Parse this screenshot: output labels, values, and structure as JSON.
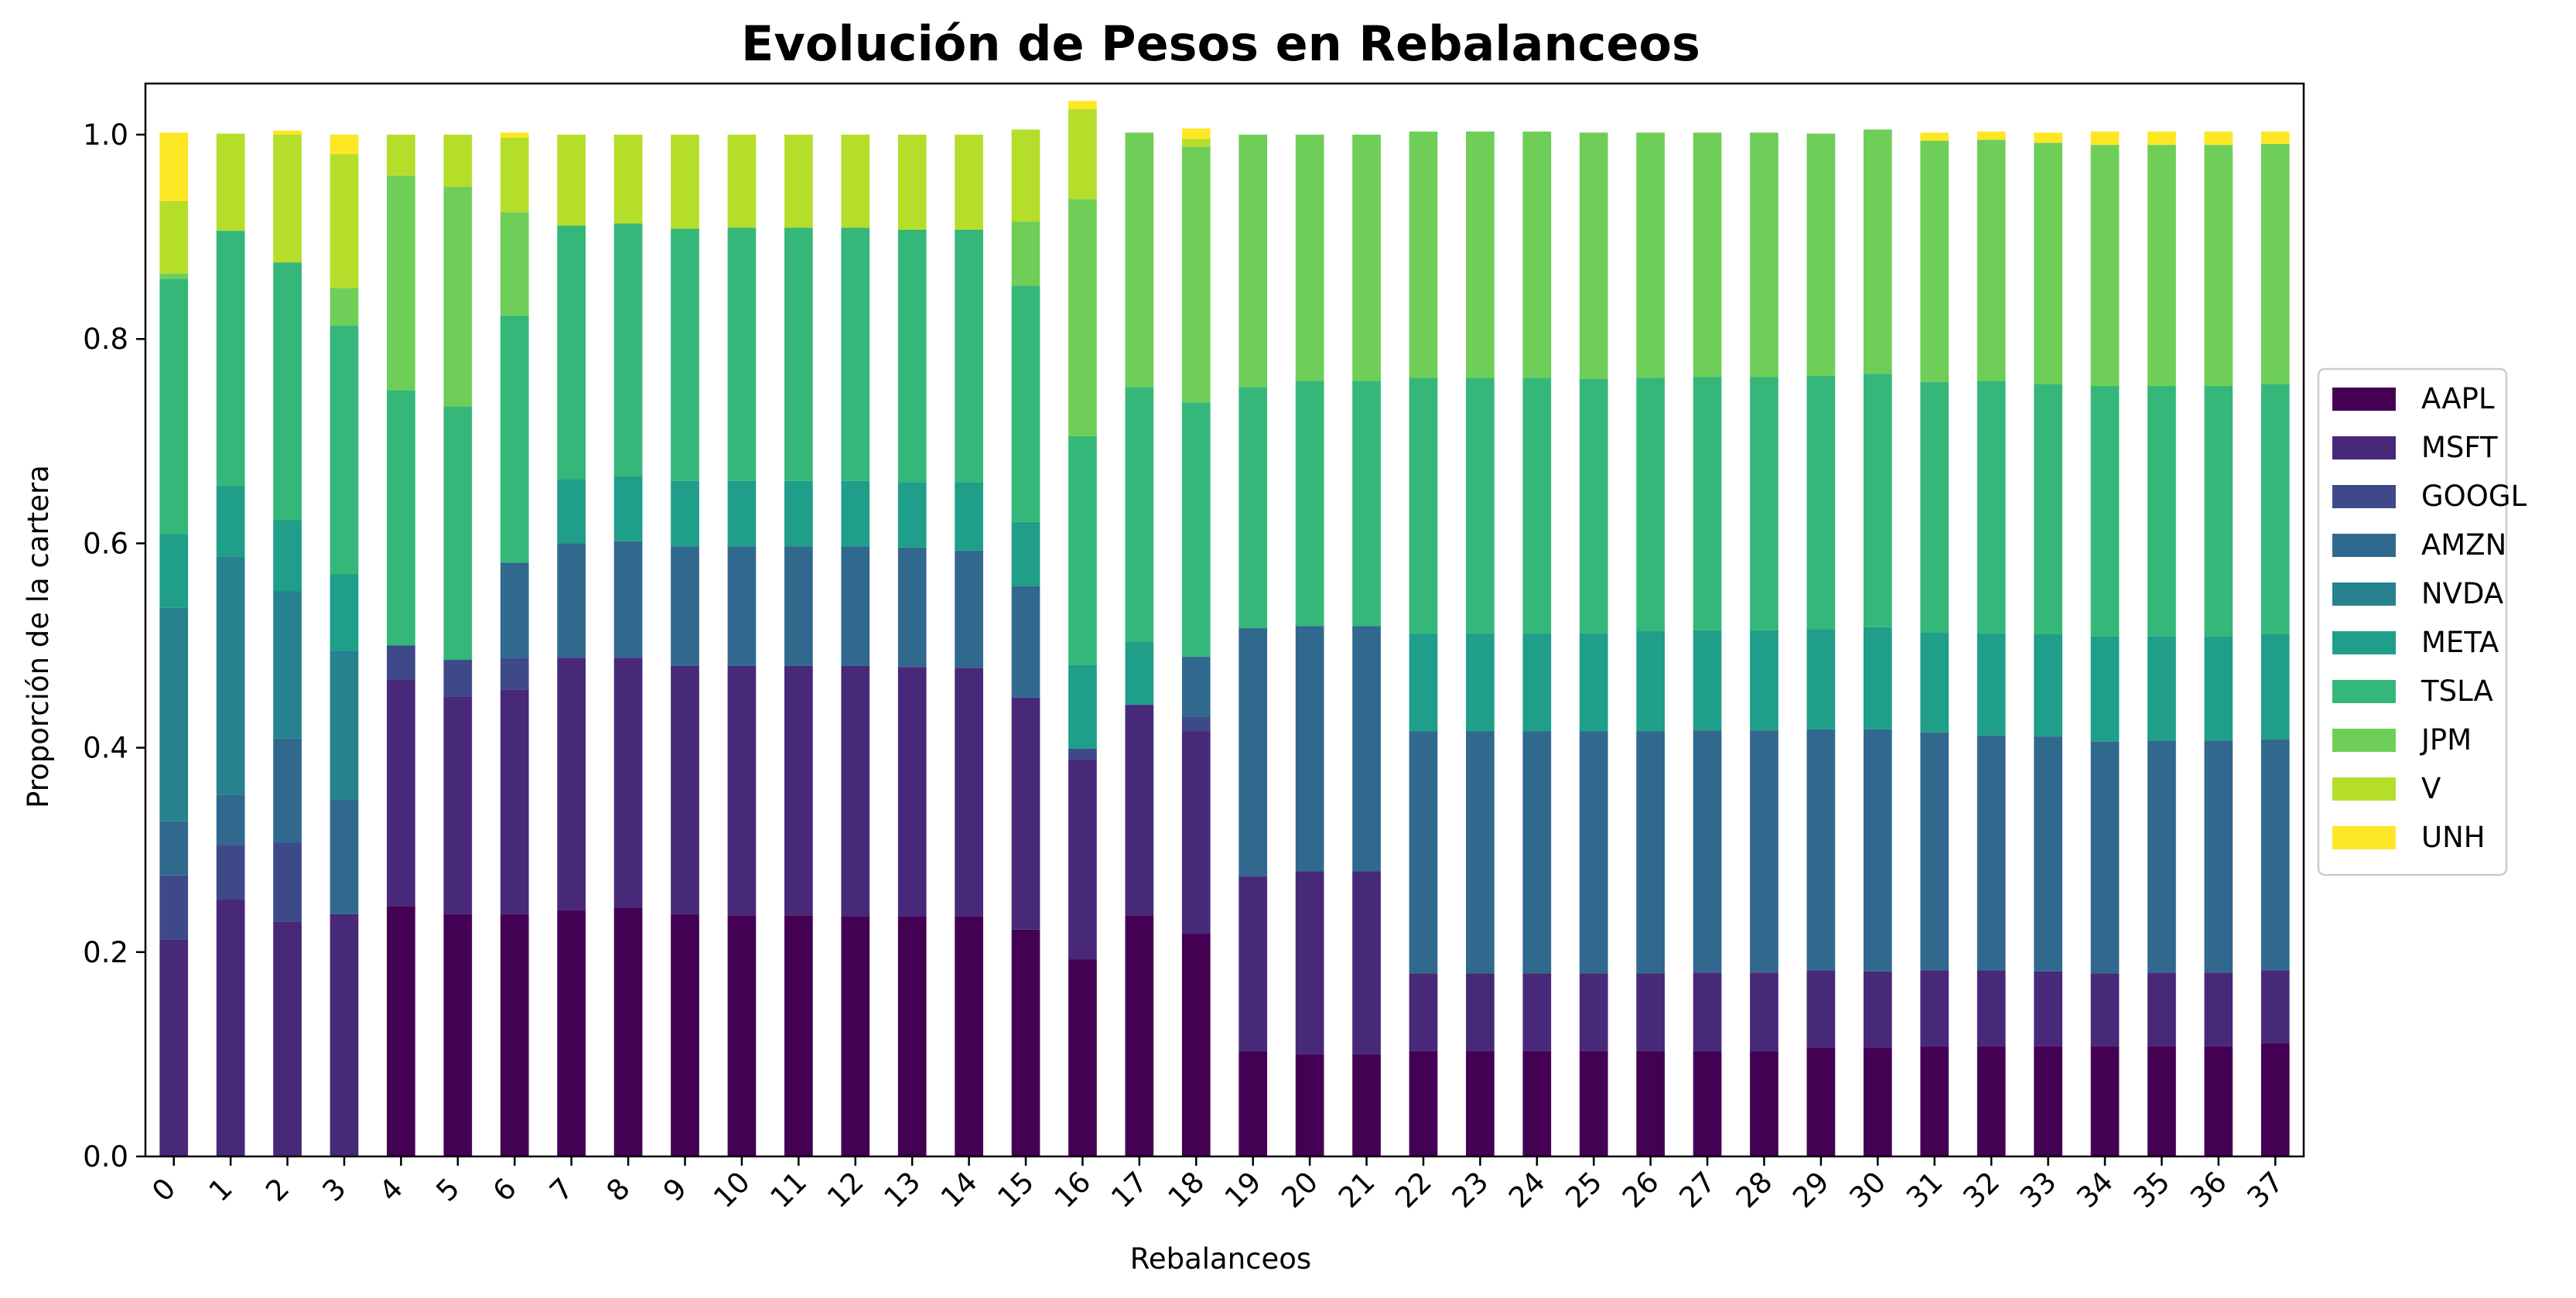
{
  "chart_data": {
    "type": "bar",
    "stacked": true,
    "title": "Evolución de Pesos en Rebalanceos",
    "xlabel": "Rebalanceos",
    "ylabel": "Proporción de la cartera",
    "ylim": [
      0,
      1.05
    ],
    "yticks": [
      "0.0",
      "0.2",
      "0.4",
      "0.6",
      "0.8",
      "1.0"
    ],
    "grid": false,
    "legend_position": "right",
    "categories": [
      "0",
      "1",
      "2",
      "3",
      "4",
      "5",
      "6",
      "7",
      "8",
      "9",
      "10",
      "11",
      "12",
      "13",
      "14",
      "15",
      "16",
      "17",
      "18",
      "19",
      "20",
      "21",
      "22",
      "23",
      "24",
      "25",
      "26",
      "27",
      "28",
      "29",
      "30",
      "31",
      "32",
      "33",
      "34",
      "35",
      "36",
      "37"
    ],
    "series": [
      {
        "name": "AAPL",
        "color": "#440154",
        "values": [
          0.0,
          0.0,
          0.0,
          0.0,
          0.245,
          0.237,
          0.237,
          0.241,
          0.243,
          0.237,
          0.236,
          0.236,
          0.235,
          0.235,
          0.235,
          0.222,
          0.193,
          0.236,
          0.218,
          0.103,
          0.1,
          0.1,
          0.103,
          0.103,
          0.103,
          0.103,
          0.103,
          0.103,
          0.103,
          0.106,
          0.106,
          0.108,
          0.108,
          0.108,
          0.108,
          0.108,
          0.108,
          0.111
        ]
      },
      {
        "name": "MSFT",
        "color": "#482878",
        "values": [
          0.212,
          0.252,
          0.23,
          0.237,
          0.222,
          0.213,
          0.22,
          0.247,
          0.245,
          0.243,
          0.244,
          0.244,
          0.245,
          0.244,
          0.243,
          0.227,
          0.196,
          0.206,
          0.198,
          0.171,
          0.179,
          0.179,
          0.076,
          0.076,
          0.076,
          0.076,
          0.076,
          0.077,
          0.077,
          0.076,
          0.075,
          0.074,
          0.074,
          0.073,
          0.071,
          0.072,
          0.072,
          0.071
        ]
      },
      {
        "name": "GOOGL",
        "color": "#3e4989",
        "values": [
          0.063,
          0.053,
          0.077,
          0.0,
          0.033,
          0.036,
          0.031,
          0.0,
          0.0,
          0.0,
          0.0,
          0.0,
          0.0,
          0.0,
          0.0,
          0.0,
          0.01,
          0.0,
          0.014,
          0.0,
          0.0,
          0.0,
          0.0,
          0.0,
          0.0,
          0.0,
          0.0,
          0.0,
          0.0,
          0.0,
          0.0,
          0.0,
          0.0,
          0.0,
          0.0,
          0.0,
          0.0,
          0.0
        ]
      },
      {
        "name": "AMZN",
        "color": "#31688e",
        "values": [
          0.053,
          0.049,
          0.102,
          0.112,
          0.0,
          0.0,
          0.093,
          0.112,
          0.114,
          0.117,
          0.117,
          0.117,
          0.117,
          0.117,
          0.115,
          0.109,
          0.0,
          0.0,
          0.059,
          0.243,
          0.24,
          0.24,
          0.237,
          0.237,
          0.237,
          0.237,
          0.237,
          0.237,
          0.237,
          0.236,
          0.237,
          0.233,
          0.23,
          0.23,
          0.227,
          0.227,
          0.227,
          0.226
        ]
      },
      {
        "name": "NVDA",
        "color": "#26828e",
        "values": [
          0.209,
          0.233,
          0.144,
          0.146,
          0.0,
          0.0,
          0.0,
          0.0,
          0.0,
          0.0,
          0.0,
          0.0,
          0.0,
          0.0,
          0.0,
          0.0,
          0.0,
          0.0,
          0.0,
          0.0,
          0.0,
          0.0,
          0.0,
          0.0,
          0.0,
          0.0,
          0.0,
          0.0,
          0.0,
          0.0,
          0.0,
          0.0,
          0.0,
          0.0,
          0.0,
          0.0,
          0.0,
          0.0
        ]
      },
      {
        "name": "META",
        "color": "#1f9e89",
        "values": [
          0.072,
          0.069,
          0.07,
          0.075,
          0.0,
          0.0,
          0.0,
          0.063,
          0.064,
          0.064,
          0.064,
          0.064,
          0.064,
          0.064,
          0.067,
          0.063,
          0.082,
          0.062,
          0.0,
          0.0,
          0.0,
          0.0,
          0.096,
          0.096,
          0.096,
          0.096,
          0.098,
          0.098,
          0.098,
          0.098,
          0.1,
          0.098,
          0.1,
          0.1,
          0.103,
          0.102,
          0.102,
          0.103
        ]
      },
      {
        "name": "TSLA",
        "color": "#35b779",
        "values": [
          0.25,
          0.25,
          0.252,
          0.243,
          0.25,
          0.248,
          0.242,
          0.248,
          0.247,
          0.247,
          0.248,
          0.248,
          0.248,
          0.247,
          0.247,
          0.231,
          0.224,
          0.249,
          0.249,
          0.236,
          0.24,
          0.24,
          0.25,
          0.25,
          0.25,
          0.249,
          0.248,
          0.248,
          0.248,
          0.248,
          0.248,
          0.245,
          0.247,
          0.245,
          0.245,
          0.245,
          0.245,
          0.245
        ]
      },
      {
        "name": "JPM",
        "color": "#6ece58",
        "values": [
          0.005,
          0.0,
          0.0,
          0.037,
          0.21,
          0.215,
          0.101,
          0.0,
          0.0,
          0.0,
          0.0,
          0.0,
          0.0,
          0.0,
          0.0,
          0.063,
          0.232,
          0.249,
          0.25,
          0.247,
          0.241,
          0.241,
          0.241,
          0.241,
          0.241,
          0.241,
          0.24,
          0.239,
          0.239,
          0.237,
          0.239,
          0.236,
          0.236,
          0.236,
          0.236,
          0.236,
          0.236,
          0.235
        ]
      },
      {
        "name": "V",
        "color": "#b5de2b",
        "values": [
          0.071,
          0.095,
          0.125,
          0.131,
          0.04,
          0.051,
          0.073,
          0.089,
          0.087,
          0.092,
          0.091,
          0.091,
          0.091,
          0.093,
          0.093,
          0.09,
          0.088,
          0.0,
          0.008,
          0.0,
          0.0,
          0.0,
          0.0,
          0.0,
          0.0,
          0.0,
          0.0,
          0.0,
          0.0,
          0.0,
          0.0,
          0.0,
          0.0,
          0.0,
          0.0,
          0.0,
          0.0,
          0.0
        ]
      },
      {
        "name": "UNH",
        "color": "#fde725",
        "values": [
          0.067,
          0.0,
          0.004,
          0.019,
          0.0,
          0.0,
          0.005,
          0.0,
          0.0,
          0.0,
          0.0,
          0.0,
          0.0,
          0.0,
          0.0,
          0.0,
          0.008,
          0.0,
          0.01,
          0.0,
          0.0,
          0.0,
          0.0,
          0.0,
          0.0,
          0.0,
          0.0,
          0.0,
          0.0,
          0.0,
          0.0,
          0.008,
          0.008,
          0.01,
          0.013,
          0.013,
          0.013,
          0.012
        ]
      }
    ]
  }
}
